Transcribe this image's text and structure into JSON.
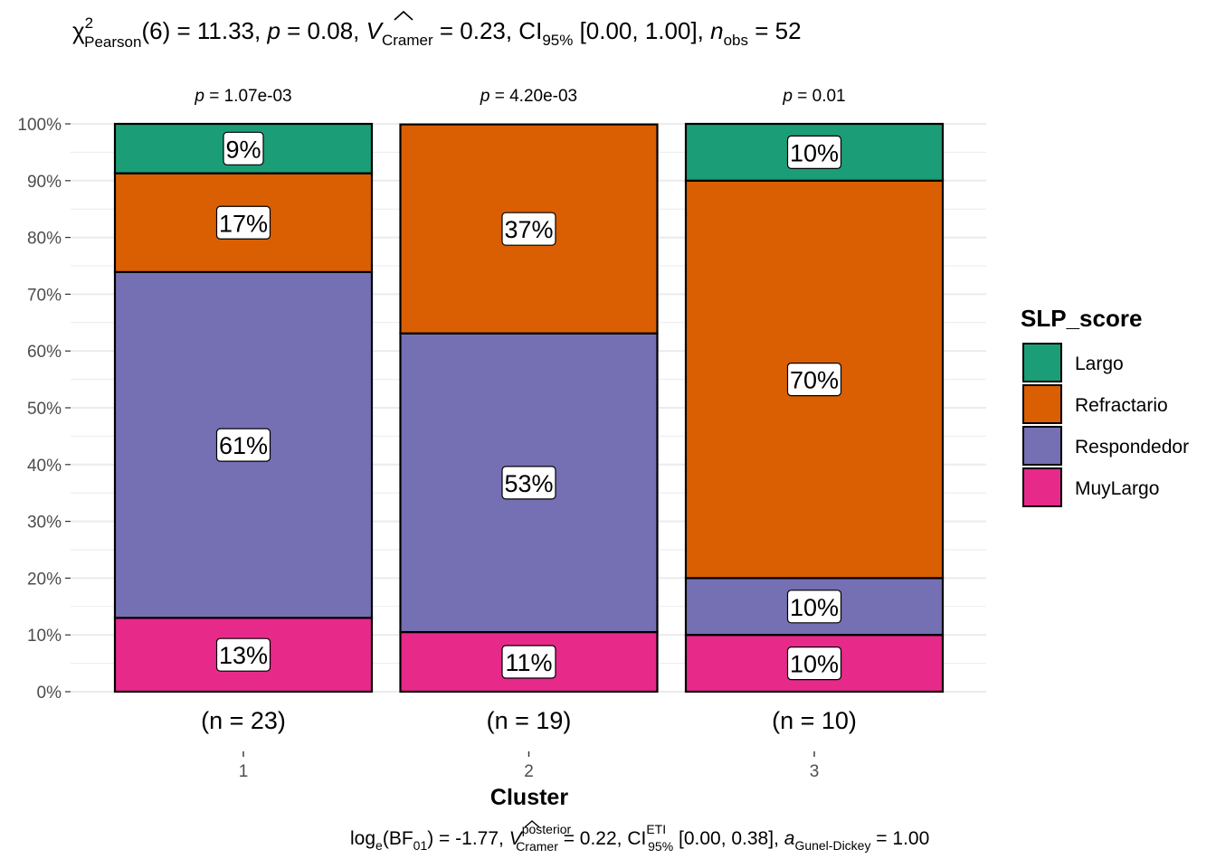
{
  "chart_data": {
    "type": "bar",
    "stacked": true,
    "title_parts": {
      "chi": "χ",
      "chi_sup": "2",
      "chi_sub": "Pearson",
      "stat": "(6) = 11.33, ",
      "p": "p",
      "p_val": " = 0.08, ",
      "V": "V",
      "V_sub": "Cramer",
      "V_val": " = 0.23, CI",
      "ci_sub": "95%",
      "ci_val": " [0.00, 1.00], ",
      "n": "n",
      "n_sub": "obs",
      "n_val": " = 52"
    },
    "caption_parts": {
      "log": "log",
      "log_sub": "e",
      "bf": "(BF",
      "bf_sub": "01",
      "bf_val": ") = -1.77, ",
      "V": "V",
      "V_sup": "posterior",
      "V_sub": "Cramer",
      "V_val": " = 0.22, CI",
      "ci_sup": "ETI",
      "ci_sub": "95%",
      "ci_val": " [0.00, 0.38], ",
      "a": "a",
      "a_sub": "Gunel-Dickey",
      "a_val": " = 1.00"
    },
    "xlabel": "Cluster",
    "ylabel": "",
    "ylim": [
      0,
      1
    ],
    "yticks": [
      "0%",
      "10%",
      "20%",
      "30%",
      "40%",
      "50%",
      "60%",
      "70%",
      "80%",
      "90%",
      "100%"
    ],
    "categories": [
      "1",
      "2",
      "3"
    ],
    "counts": [
      "(n = 23)",
      "(n = 19)",
      "(n = 10)"
    ],
    "p_labels": [
      "1.07e-03",
      "4.20e-03",
      "0.01"
    ],
    "p_prefix": "p",
    "p_eq": " = ",
    "legend_title": "SLP_score",
    "legend_position": "right",
    "grid": true,
    "series": [
      {
        "name": "Largo",
        "color": "#1b9e77",
        "values": [
          0.087,
          0,
          0.1
        ],
        "labels": [
          "9%",
          "",
          "10%"
        ]
      },
      {
        "name": "Refractario",
        "color": "#d95f02",
        "values": [
          0.174,
          0.368,
          0.7
        ],
        "labels": [
          "17%",
          "37%",
          "70%"
        ]
      },
      {
        "name": "Respondedor",
        "color": "#7570b3",
        "values": [
          0.609,
          0.526,
          0.1
        ],
        "labels": [
          "61%",
          "53%",
          "10%"
        ]
      },
      {
        "name": "MuyLargo",
        "color": "#e7298a",
        "values": [
          0.13,
          0.105,
          0.1
        ],
        "labels": [
          "13%",
          "11%",
          "10%"
        ]
      }
    ]
  }
}
